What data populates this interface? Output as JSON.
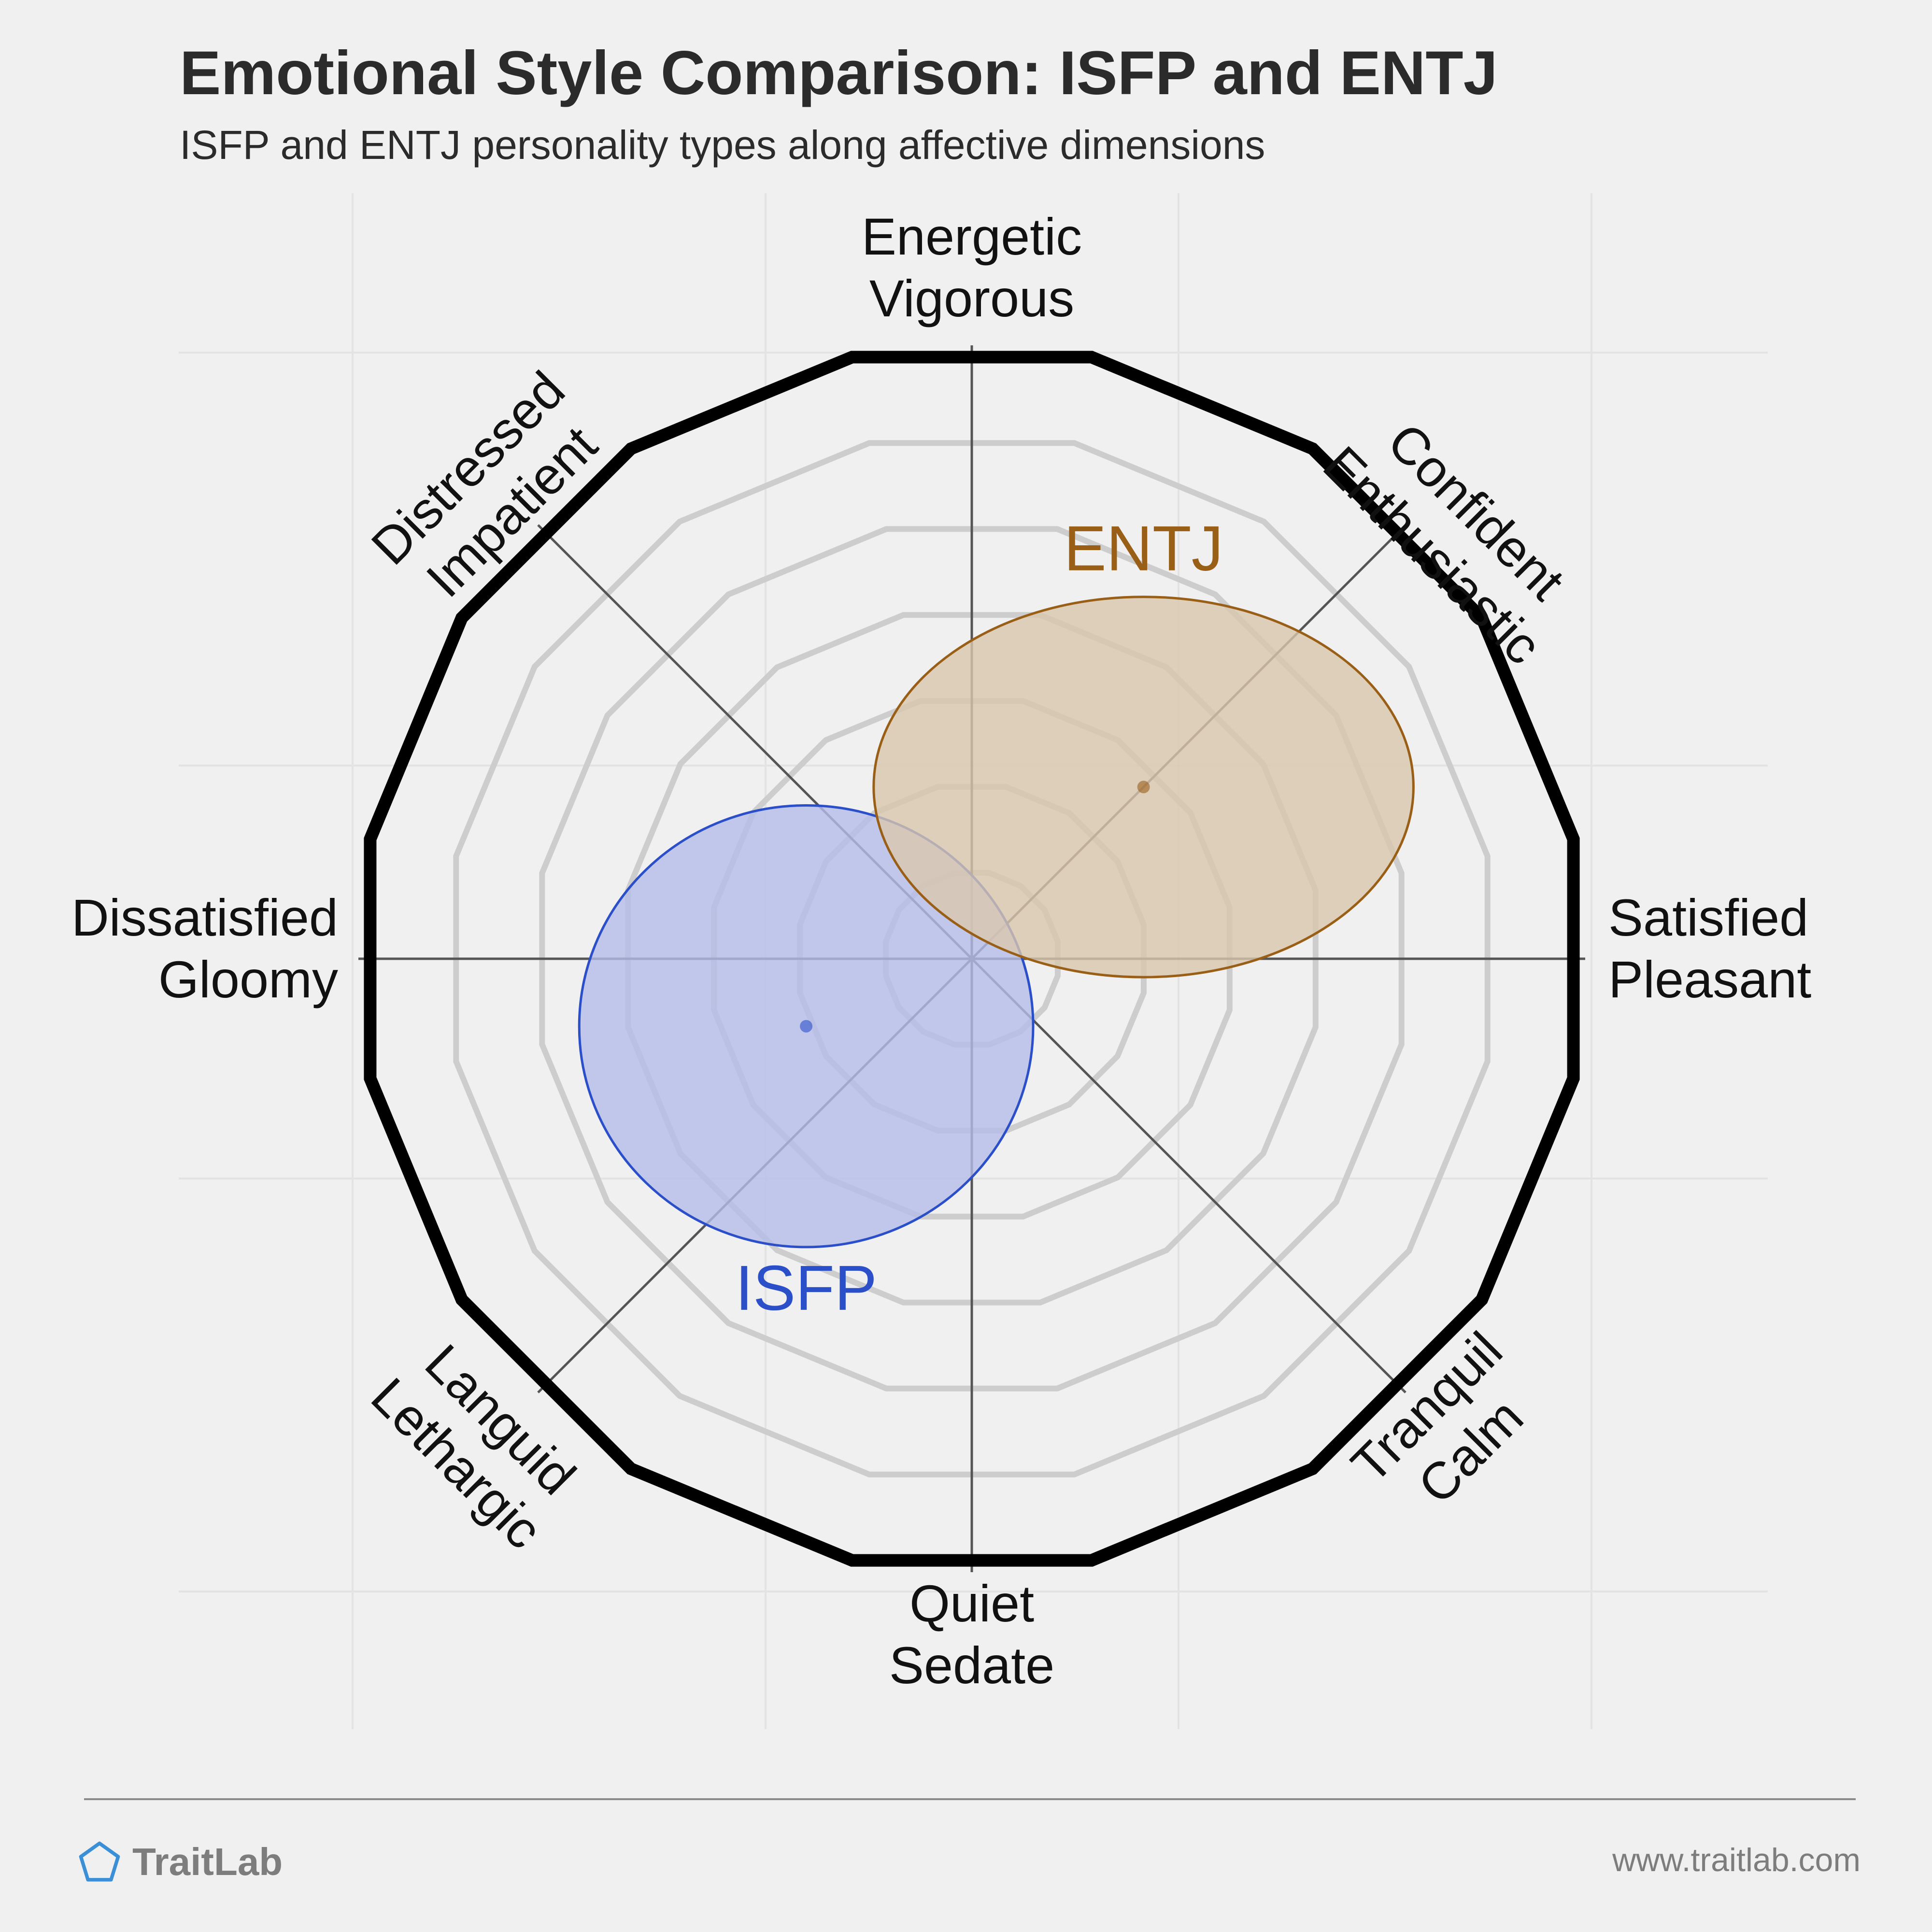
{
  "page": {
    "title": "Emotional Style Comparison: ISFP and ENTJ",
    "subtitle": "ISFP and ENTJ personality types along affective dimensions",
    "brand": "TraitLab",
    "website": "www.traitlab.com"
  },
  "chart_data": {
    "type": "scatter",
    "subtype": "circumplex",
    "title": "Emotional Style Comparison: ISFP and ENTJ",
    "subtitle": "ISFP and ENTJ personality types along affective dimensions",
    "axes": [
      {
        "direction": "top",
        "labels": [
          "Energetic",
          "Vigorous"
        ]
      },
      {
        "direction": "top-right",
        "labels": [
          "Confident",
          "Enthusiastic"
        ]
      },
      {
        "direction": "right",
        "labels": [
          "Satisfied",
          "Pleasant"
        ]
      },
      {
        "direction": "bottom-right",
        "labels": [
          "Tranquil",
          "Calm"
        ]
      },
      {
        "direction": "bottom",
        "labels": [
          "Quiet",
          "Sedate"
        ]
      },
      {
        "direction": "bottom-left",
        "labels": [
          "Languid",
          "Lethargic"
        ]
      },
      {
        "direction": "left",
        "labels": [
          "Dissatisfied",
          "Gloomy"
        ]
      },
      {
        "direction": "top-left",
        "labels": [
          "Distressed",
          "Impatient"
        ]
      }
    ],
    "x_range": [
      -1,
      1
    ],
    "y_range": [
      -1,
      1
    ],
    "rings": 6,
    "grid": true,
    "series": [
      {
        "name": "ISFP",
        "x": -0.27,
        "y": -0.11,
        "spread_x": 0.37,
        "spread_y": 0.36,
        "color": "#2b4ec9",
        "fill": "#b4bde9"
      },
      {
        "name": "ENTJ",
        "x": 0.28,
        "y": 0.28,
        "spread_x": 0.44,
        "spread_y": 0.31,
        "color": "#9a5f17",
        "fill": "#d9c7ae"
      }
    ]
  },
  "colors": {
    "background": "#f0f0f0",
    "grid": "#e3e3e3",
    "ring": "#cdcdcd",
    "outer_ring": "#000000",
    "axis": "#555555",
    "brand_icon": "#3a8fd6"
  },
  "icons": {
    "brand": "pentagon-logo-icon"
  }
}
